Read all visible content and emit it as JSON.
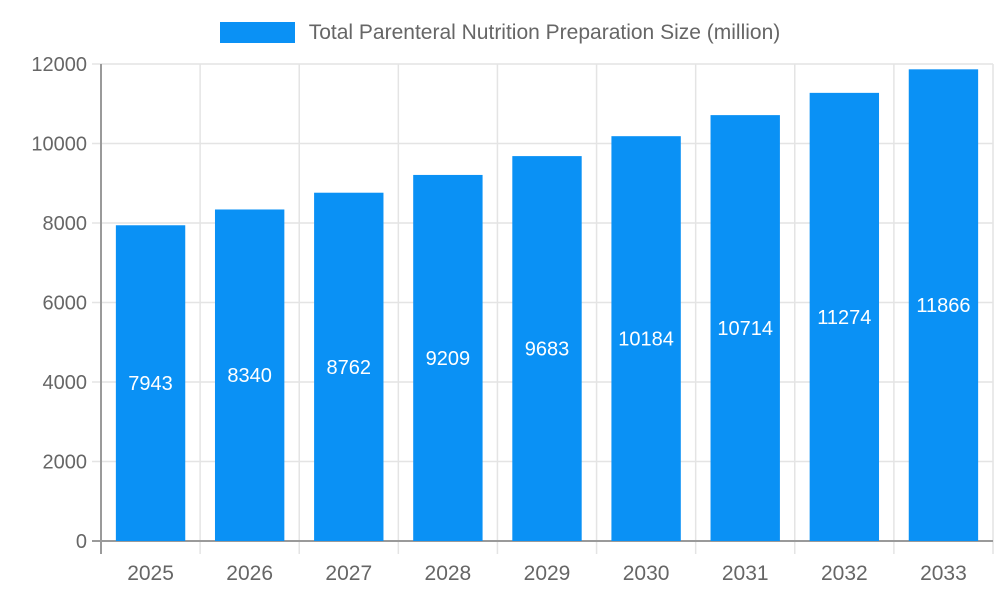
{
  "chart_data": {
    "type": "bar",
    "title": "Total Parenteral Nutrition Preparation Size (million)",
    "categories": [
      "2025",
      "2026",
      "2027",
      "2028",
      "2029",
      "2030",
      "2031",
      "2032",
      "2033"
    ],
    "values": [
      7943,
      8340,
      8762,
      9209,
      9683,
      10184,
      10714,
      11274,
      11866
    ],
    "xlabel": "",
    "ylabel": "",
    "ylim": [
      0,
      12000
    ],
    "yticks": [
      0,
      2000,
      4000,
      6000,
      8000,
      10000,
      12000
    ],
    "grid": true,
    "legend_position": "top-center",
    "value_labels_shown": true,
    "colors": {
      "bar": "#0a91f5",
      "bar_value_label": "#ffffff",
      "tick_label": "#666666",
      "gridline": "#e4e4e4",
      "axis_line": "#9a9a9a",
      "legend_text": "#666666",
      "background": "#ffffff"
    }
  }
}
